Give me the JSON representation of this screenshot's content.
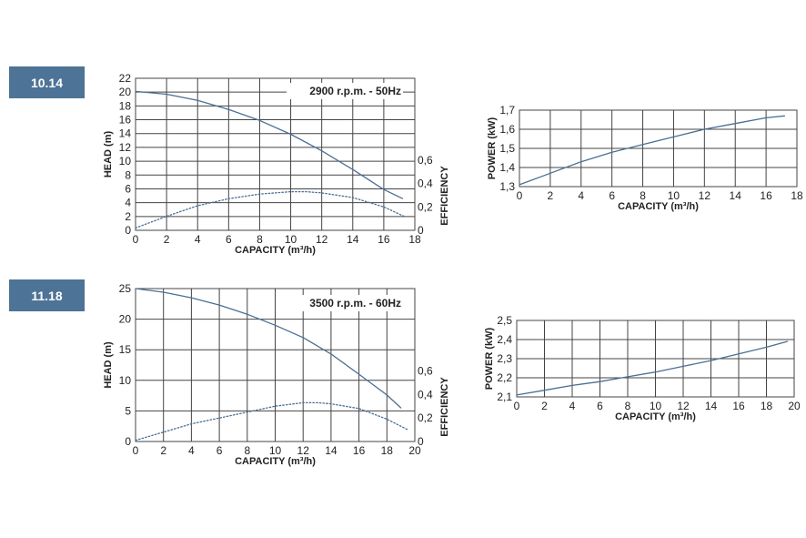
{
  "badges": [
    "10.14",
    "11.18"
  ],
  "colors": {
    "curve": "#4a6f93",
    "grid": "#444444",
    "badge": "#4d7396"
  },
  "chart_data": [
    {
      "id": "c1",
      "type": "line",
      "annotation": "2900 r.p.m. - 50Hz",
      "xlabel": "CAPACITY (m³/h)",
      "ylabel": "HEAD (m)",
      "y2label": "EFFICIENCY",
      "xlim": [
        0,
        18
      ],
      "ylim": [
        0,
        22
      ],
      "y2lim": [
        0,
        1.3
      ],
      "xticks": [
        0,
        2,
        4,
        6,
        8,
        10,
        12,
        14,
        16,
        18
      ],
      "yticks": [
        0,
        2,
        4,
        6,
        8,
        10,
        12,
        14,
        16,
        18,
        20,
        22
      ],
      "y2ticks": [
        0,
        0.2,
        0.4,
        0.6
      ],
      "y2ticklabels": [
        "0",
        "0,2",
        "0,4",
        "0,6"
      ],
      "grid": true,
      "series": [
        {
          "axis": "left",
          "style": "solid",
          "x": [
            0,
            2,
            4,
            6,
            8,
            10,
            12,
            14,
            16,
            17.2
          ],
          "y": [
            20.1,
            19.7,
            18.8,
            17.5,
            15.9,
            13.9,
            11.5,
            8.8,
            5.9,
            4.6
          ]
        },
        {
          "axis": "right",
          "style": "dotted",
          "x": [
            0,
            2,
            4,
            6,
            8,
            10,
            11,
            12,
            14,
            16,
            17.3
          ],
          "y": [
            0.02,
            0.12,
            0.21,
            0.27,
            0.31,
            0.33,
            0.33,
            0.32,
            0.28,
            0.2,
            0.12
          ]
        }
      ]
    },
    {
      "id": "c2",
      "type": "line",
      "xlabel": "CAPACITY (m³/h)",
      "ylabel": "POWER (kW)",
      "xlim": [
        0,
        18
      ],
      "ylim": [
        1.3,
        1.7
      ],
      "xticks": [
        0,
        2,
        4,
        6,
        8,
        10,
        12,
        14,
        16,
        18
      ],
      "yticks": [
        1.3,
        1.4,
        1.5,
        1.6,
        1.7
      ],
      "yticklabels": [
        "1,3",
        "1,4",
        "1,5",
        "1,6",
        "1,7"
      ],
      "grid": true,
      "series": [
        {
          "axis": "left",
          "style": "solid",
          "x": [
            0,
            2,
            4,
            6,
            8,
            10,
            12,
            14,
            16,
            17.2
          ],
          "y": [
            1.31,
            1.37,
            1.43,
            1.48,
            1.52,
            1.56,
            1.6,
            1.63,
            1.66,
            1.67
          ]
        }
      ]
    },
    {
      "id": "c3",
      "type": "line",
      "annotation": "3500 r.p.m.  - 60Hz",
      "xlabel": "CAPACITY (m³/h)",
      "ylabel": "HEAD (m)",
      "y2label": "EFFICIENCY",
      "xlim": [
        0,
        20
      ],
      "ylim": [
        0,
        25
      ],
      "y2lim": [
        0,
        1.3
      ],
      "xticks": [
        0,
        2,
        4,
        6,
        8,
        10,
        12,
        14,
        16,
        18,
        20
      ],
      "yticks": [
        0,
        5,
        10,
        15,
        20,
        25
      ],
      "y2ticks": [
        0,
        0.2,
        0.4,
        0.6
      ],
      "y2ticklabels": [
        "0",
        "0,2",
        "0,4",
        "0,6"
      ],
      "grid": true,
      "series": [
        {
          "axis": "left",
          "style": "solid",
          "x": [
            0,
            2,
            4,
            6,
            8,
            10,
            12,
            14,
            16,
            18,
            19
          ],
          "y": [
            25,
            24.4,
            23.5,
            22.3,
            20.8,
            19,
            17,
            14.3,
            11,
            7.6,
            5.5
          ]
        },
        {
          "axis": "right",
          "style": "dotted",
          "x": [
            0,
            2,
            4,
            6,
            8,
            10,
            12,
            13,
            14,
            16,
            18,
            19.5
          ],
          "y": [
            0.01,
            0.08,
            0.15,
            0.2,
            0.25,
            0.3,
            0.33,
            0.33,
            0.32,
            0.28,
            0.19,
            0.1
          ]
        }
      ]
    },
    {
      "id": "c4",
      "type": "line",
      "xlabel": "CAPACITY (m³/h)",
      "ylabel": "POWER (kW)",
      "xlim": [
        0,
        20
      ],
      "ylim": [
        2.1,
        2.5
      ],
      "xticks": [
        0,
        2,
        4,
        6,
        8,
        10,
        12,
        14,
        16,
        18,
        20
      ],
      "yticks": [
        2.1,
        2.2,
        2.3,
        2.4,
        2.5
      ],
      "yticklabels": [
        "2,1",
        "2,2",
        "2,3",
        "2,4",
        "2,5"
      ],
      "grid": true,
      "series": [
        {
          "axis": "left",
          "style": "solid",
          "x": [
            0,
            2,
            4,
            6,
            8,
            10,
            12,
            14,
            16,
            18,
            19.5
          ],
          "y": [
            2.11,
            2.135,
            2.16,
            2.18,
            2.205,
            2.23,
            2.26,
            2.29,
            2.325,
            2.36,
            2.39
          ]
        }
      ]
    }
  ]
}
